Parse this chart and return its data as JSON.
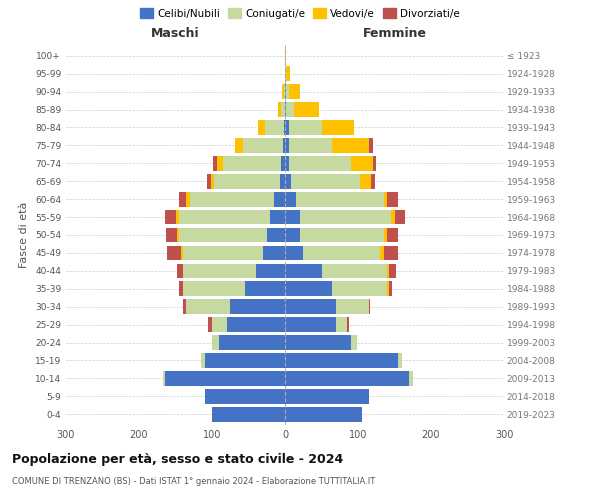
{
  "age_groups": [
    "0-4",
    "5-9",
    "10-14",
    "15-19",
    "20-24",
    "25-29",
    "30-34",
    "35-39",
    "40-44",
    "45-49",
    "50-54",
    "55-59",
    "60-64",
    "65-69",
    "70-74",
    "75-79",
    "80-84",
    "85-89",
    "90-94",
    "95-99",
    "100+"
  ],
  "birth_years": [
    "2019-2023",
    "2014-2018",
    "2009-2013",
    "2004-2008",
    "1999-2003",
    "1994-1998",
    "1989-1993",
    "1984-1988",
    "1979-1983",
    "1974-1978",
    "1969-1973",
    "1964-1968",
    "1959-1963",
    "1954-1958",
    "1949-1953",
    "1944-1948",
    "1939-1943",
    "1934-1938",
    "1929-1933",
    "1924-1928",
    "≤ 1923"
  ],
  "colors": {
    "celibi": "#4472c4",
    "coniugati": "#c5d9a0",
    "vedovi": "#ffc000",
    "divorziati": "#c0504d"
  },
  "males": {
    "celibi": [
      100,
      110,
      165,
      110,
      90,
      80,
      75,
      55,
      40,
      30,
      25,
      20,
      15,
      7,
      5,
      3,
      2,
      0,
      0,
      0,
      0
    ],
    "coniugati": [
      0,
      0,
      2,
      5,
      10,
      20,
      60,
      85,
      100,
      110,
      120,
      125,
      115,
      90,
      80,
      55,
      25,
      5,
      2,
      0,
      0
    ],
    "vedovi": [
      0,
      0,
      0,
      0,
      0,
      0,
      0,
      0,
      0,
      2,
      3,
      5,
      5,
      5,
      8,
      10,
      10,
      5,
      2,
      0,
      0
    ],
    "divorziati": [
      0,
      0,
      0,
      0,
      0,
      5,
      5,
      5,
      8,
      20,
      15,
      15,
      10,
      5,
      5,
      0,
      0,
      0,
      0,
      0,
      0
    ]
  },
  "females": {
    "celibi": [
      105,
      115,
      170,
      155,
      90,
      70,
      70,
      65,
      50,
      25,
      20,
      20,
      15,
      8,
      5,
      5,
      5,
      2,
      1,
      0,
      0
    ],
    "coniugati": [
      0,
      0,
      5,
      5,
      8,
      15,
      45,
      75,
      90,
      105,
      115,
      125,
      120,
      95,
      85,
      60,
      45,
      10,
      4,
      2,
      0
    ],
    "vedovi": [
      0,
      0,
      0,
      0,
      0,
      0,
      0,
      2,
      2,
      5,
      5,
      5,
      5,
      15,
      30,
      50,
      45,
      35,
      15,
      5,
      2
    ],
    "divorziati": [
      0,
      0,
      0,
      0,
      0,
      2,
      2,
      5,
      10,
      20,
      15,
      15,
      15,
      5,
      5,
      5,
      0,
      0,
      0,
      0,
      0
    ]
  },
  "xlim": 300,
  "title": "Popolazione per età, sesso e stato civile - 2024",
  "subtitle": "COMUNE DI TRENZANO (BS) - Dati ISTAT 1° gennaio 2024 - Elaborazione TUTTITALIA.IT",
  "ylabel_left": "Fasce di età",
  "xlabel_left": "Maschi",
  "xlabel_right": "Femmine"
}
